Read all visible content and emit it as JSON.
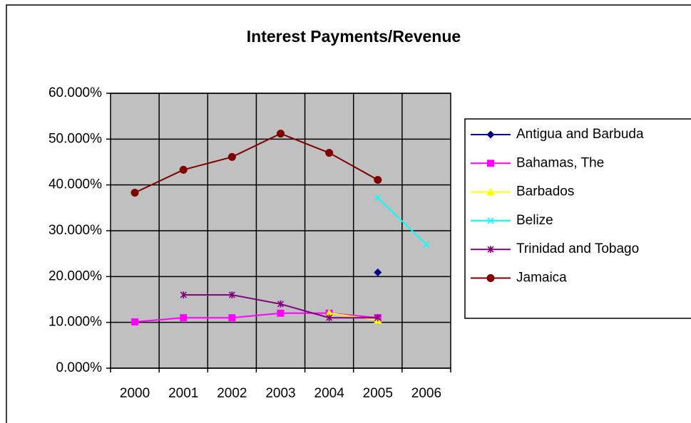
{
  "chart_data": {
    "type": "line",
    "title": "Interest Payments/Revenue",
    "categories": [
      "2000",
      "2001",
      "2002",
      "2003",
      "2004",
      "2005",
      "2006"
    ],
    "series": [
      {
        "name": "Antigua and Barbuda",
        "color": "#000080",
        "marker": "diamond",
        "values": [
          null,
          null,
          null,
          null,
          null,
          20.9,
          null
        ]
      },
      {
        "name": "Bahamas, The",
        "color": "#ff00ff",
        "marker": "square",
        "values": [
          10.1,
          11.0,
          11.0,
          12.0,
          12.0,
          11.0,
          null
        ]
      },
      {
        "name": "Barbados",
        "color": "#ffff00",
        "marker": "triangle",
        "values": [
          null,
          null,
          null,
          null,
          12.0,
          10.5,
          null
        ]
      },
      {
        "name": "Belize",
        "color": "#00ffff",
        "marker": "x",
        "values": [
          null,
          null,
          null,
          null,
          null,
          37.2,
          27.0
        ]
      },
      {
        "name": "Trinidad and Tobago",
        "color": "#800080",
        "marker": "star",
        "values": [
          null,
          16.0,
          16.0,
          14.0,
          11.0,
          11.0,
          null
        ]
      },
      {
        "name": "Jamaica",
        "color": "#800000",
        "marker": "circle",
        "values": [
          38.3,
          43.3,
          46.1,
          51.2,
          47.0,
          41.1,
          null
        ]
      }
    ],
    "ylim": [
      0,
      60
    ],
    "yticks": [
      {
        "value": 0,
        "label": "0.000%"
      },
      {
        "value": 10,
        "label": "10.000%"
      },
      {
        "value": 20,
        "label": "20.000%"
      },
      {
        "value": 30,
        "label": "30.000%"
      },
      {
        "value": 40,
        "label": "40.000%"
      },
      {
        "value": 50,
        "label": "50.000%"
      },
      {
        "value": 60,
        "label": "60.000%"
      }
    ],
    "grid": true,
    "legend": "right",
    "plot_background": "#c0c0c0"
  }
}
